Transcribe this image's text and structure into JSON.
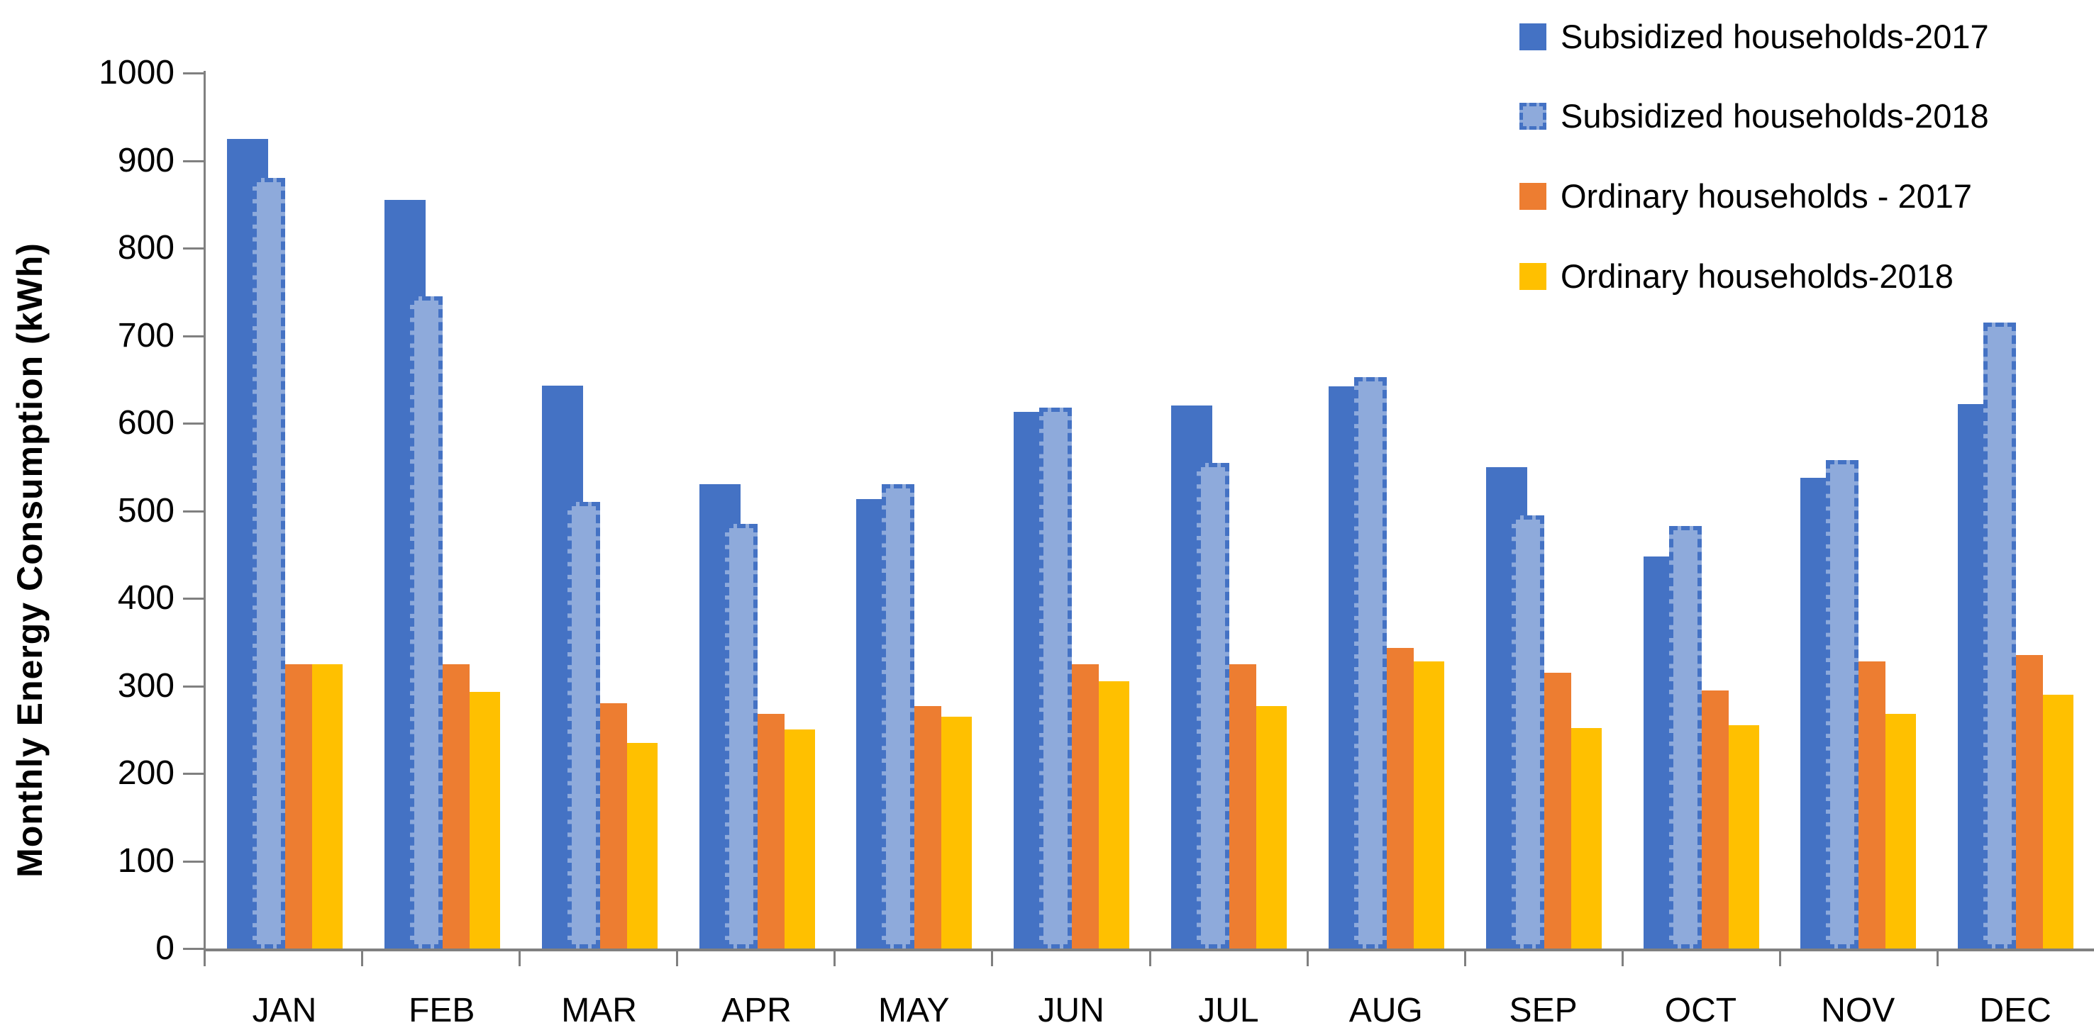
{
  "chart_data": {
    "type": "bar",
    "title": "",
    "xlabel": "",
    "ylabel": "Monthly Energy Consumption (kWh)",
    "ylim": [
      0,
      1000
    ],
    "yticks": [
      0,
      100,
      200,
      300,
      400,
      500,
      600,
      700,
      800,
      900,
      1000
    ],
    "grid": false,
    "legend_position": "top-right",
    "axis_color": "#808080",
    "text_color": "#000000",
    "categories": [
      "JAN",
      "FEB",
      "MAR",
      "APR",
      "MAY",
      "JUN",
      "JUL",
      "AUG",
      "SEP",
      "OCT",
      "NOV",
      "DEC"
    ],
    "series": [
      {
        "name": "Subsidized households-2017",
        "color": "#4472C4",
        "style": "solid",
        "values": [
          925,
          855,
          643,
          530,
          513,
          613,
          620,
          642,
          550,
          448,
          538,
          622
        ]
      },
      {
        "name": "Subsidized households-2018",
        "color": "#8EAADB",
        "style": "dashed-outline",
        "outline_color": "#4472C4",
        "values": [
          880,
          745,
          510,
          485,
          530,
          618,
          555,
          653,
          495,
          483,
          558,
          715
        ]
      },
      {
        "name": "Ordinary households - 2017",
        "color": "#ED7D31",
        "style": "solid",
        "values": [
          325,
          325,
          280,
          268,
          277,
          325,
          325,
          343,
          315,
          295,
          328,
          335
        ]
      },
      {
        "name": "Ordinary households-2018",
        "color": "#FFC000",
        "style": "solid",
        "values": [
          325,
          293,
          235,
          250,
          265,
          305,
          277,
          328,
          252,
          255,
          268,
          290
        ]
      }
    ]
  }
}
